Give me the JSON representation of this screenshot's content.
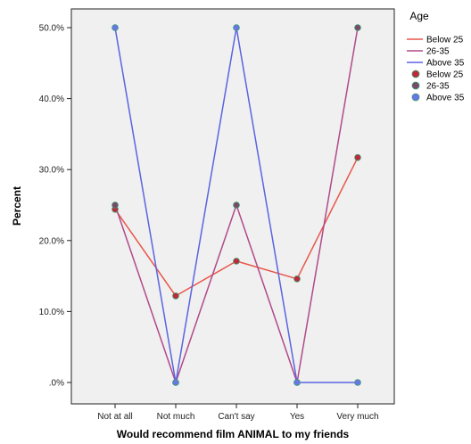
{
  "chart_data": {
    "type": "line",
    "title": "",
    "xlabel": "Would recommend film ANIMAL to my friends",
    "ylabel": "Percent",
    "categories": [
      "Not at all",
      "Not much",
      "Can't say",
      "Yes",
      "Very much"
    ],
    "ylim": [
      0,
      50
    ],
    "yticks": [
      0,
      10,
      20,
      30,
      40,
      50
    ],
    "ytick_labels": [
      ".0%",
      "10.0%",
      "20.0%",
      "30.0%",
      "40.0%",
      "50.0%"
    ],
    "grid": false,
    "legend_position": "right",
    "legend_title": "Age",
    "series": [
      {
        "name": "Below 25",
        "line_color": "#e8564a",
        "marker_color": "#c0283a",
        "values": [
          24.4,
          12.2,
          17.1,
          14.6,
          31.7
        ]
      },
      {
        "name": "26-35",
        "line_color": "#b04a8a",
        "marker_color": "#7a4a6a",
        "values": [
          25.0,
          0.0,
          25.0,
          0.0,
          50.0
        ]
      },
      {
        "name": "Above 35",
        "line_color": "#5a64e0",
        "marker_color": "#6b74e8",
        "values": [
          50.0,
          0.0,
          50.0,
          0.0,
          0.0
        ]
      }
    ],
    "colors": {
      "plot_background": "#f0f0f0",
      "plot_border": "#222222",
      "point_center": "#3aa070"
    }
  }
}
